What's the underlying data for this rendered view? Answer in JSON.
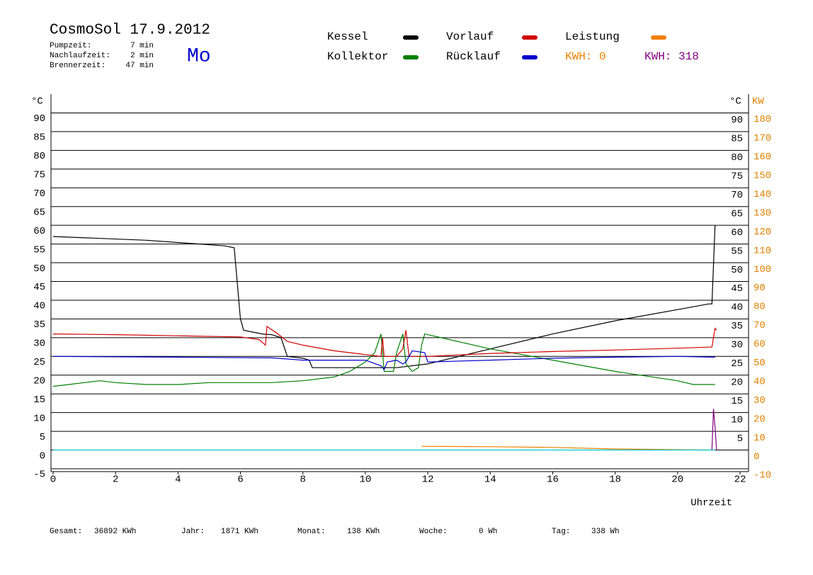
{
  "header": {
    "title": "CosmoSol 17.9.2012",
    "day": "Mo",
    "info": [
      {
        "label": "Pumpzeit:",
        "value": "7 min"
      },
      {
        "label": "Nachlaufzeit:",
        "value": "2 min"
      },
      {
        "label": "Brennerzeit:",
        "value": "47 min"
      }
    ],
    "kwh": [
      {
        "text": "KWH: 0",
        "color": "#f08000"
      },
      {
        "text": "KWH: 318",
        "color": "#800080"
      }
    ]
  },
  "chart_data": {
    "type": "line",
    "xlabel": "Uhrzeit",
    "ylabel": "°C",
    "y2label": "KW",
    "xlim": [
      0,
      22
    ],
    "xticks": [
      0,
      2,
      4,
      6,
      8,
      10,
      12,
      14,
      16,
      18,
      20,
      22
    ],
    "ylim": [
      -5,
      95
    ],
    "yticks": [
      -5,
      0,
      5,
      10,
      15,
      20,
      25,
      30,
      35,
      40,
      45,
      50,
      55,
      60,
      65,
      70,
      75,
      80,
      85,
      90
    ],
    "yticks_right": [
      5,
      10,
      15,
      20,
      25,
      30,
      35,
      40,
      45,
      50,
      55,
      60,
      65,
      70,
      75,
      80,
      85,
      90
    ],
    "y2lim": [
      -10,
      190
    ],
    "y2ticks": [
      -10,
      0,
      10,
      20,
      30,
      40,
      50,
      60,
      70,
      80,
      90,
      100,
      110,
      120,
      130,
      140,
      150,
      160,
      170,
      180
    ],
    "grid": true,
    "series": [
      {
        "name": "Kessel",
        "color": "#000000",
        "x": [
          0,
          3,
          5.5,
          5.8,
          6,
          6.1,
          6.7,
          7,
          7.3,
          7.5,
          8,
          8.2,
          8.3,
          10,
          11,
          12,
          14,
          16,
          18,
          20,
          21,
          21.1,
          21.2
        ],
        "values": [
          57,
          56,
          54.5,
          54,
          35,
          32,
          31,
          30.8,
          30,
          25,
          24.5,
          24,
          22,
          22,
          22,
          23,
          27,
          31,
          34.5,
          37.5,
          39,
          39,
          60
        ]
      },
      {
        "name": "Kollektor",
        "color": "#008000",
        "x": [
          0,
          0.5,
          1,
          1.5,
          2,
          3,
          4,
          5,
          6,
          7,
          8,
          9,
          9.5,
          10,
          10.3,
          10.5,
          10.6,
          10.9,
          11,
          11.2,
          11.3,
          11.5,
          11.7,
          11.8,
          11.9,
          14,
          16,
          18,
          20,
          20.5,
          21.2
        ],
        "values": [
          17,
          17.5,
          18,
          18.5,
          18,
          17.5,
          17.5,
          18,
          18,
          18,
          18.5,
          19.5,
          21,
          23.5,
          26,
          31,
          21,
          21,
          26,
          31,
          23,
          21,
          22,
          28,
          31,
          27,
          24,
          21,
          18.5,
          17.5,
          17.5
        ]
      },
      {
        "name": "Vorlauf",
        "color": "#d00000",
        "x": [
          0,
          2,
          4,
          6,
          6.6,
          6.8,
          6.85,
          7.2,
          7.5,
          8,
          9,
          10,
          10.5,
          10.55,
          10.6,
          11,
          11.2,
          11.3,
          11.4,
          12,
          14,
          16,
          18,
          20,
          21.1,
          21.2,
          21.25
        ],
        "values": [
          31,
          30.8,
          30.5,
          30.2,
          29.5,
          28,
          33,
          31,
          29,
          28,
          26.5,
          25.5,
          25,
          30,
          25,
          25,
          27,
          32,
          25,
          25,
          25.8,
          26.3,
          26.7,
          27.2,
          27.5,
          32.5,
          32
        ]
      },
      {
        "name": "Rücklauf",
        "color": "#0000cc",
        "x": [
          0,
          4,
          7,
          8,
          10,
          10.5,
          10.6,
          10.7,
          11,
          11.2,
          11.3,
          11.5,
          11.9,
          12,
          14,
          16,
          18,
          20,
          21.2
        ],
        "values": [
          25,
          24.8,
          24.6,
          24,
          24,
          22.5,
          21.5,
          23.5,
          24,
          23,
          23.5,
          26.5,
          26,
          23.5,
          24,
          24.5,
          24.8,
          25,
          24.8
        ]
      },
      {
        "name": "Leistung",
        "color": "#f08000",
        "axis": "y2",
        "x": [
          11.8,
          12,
          14,
          16,
          18,
          20,
          21
        ],
        "values": [
          2,
          2,
          1.8,
          1.4,
          0.6,
          0.2,
          0
        ]
      },
      {
        "color": "#00c8c8",
        "x": [
          0,
          21.2
        ],
        "values": [
          0,
          0
        ]
      },
      {
        "color": "#800080",
        "axis": "y2",
        "x": [
          21.1,
          21.15,
          21.2,
          21.25
        ],
        "values": [
          0,
          22,
          12,
          0
        ]
      }
    ]
  },
  "footer": [
    {
      "label": "Gesamt:",
      "value": "36892 KWh"
    },
    {
      "label": "Jahr:",
      "value": "1871 KWh"
    },
    {
      "label": "Monat:",
      "value": "138 KWh"
    },
    {
      "label": "Woche:",
      "value": "0 Wh"
    },
    {
      "label": "Tag:",
      "value": "338 Wh"
    }
  ]
}
